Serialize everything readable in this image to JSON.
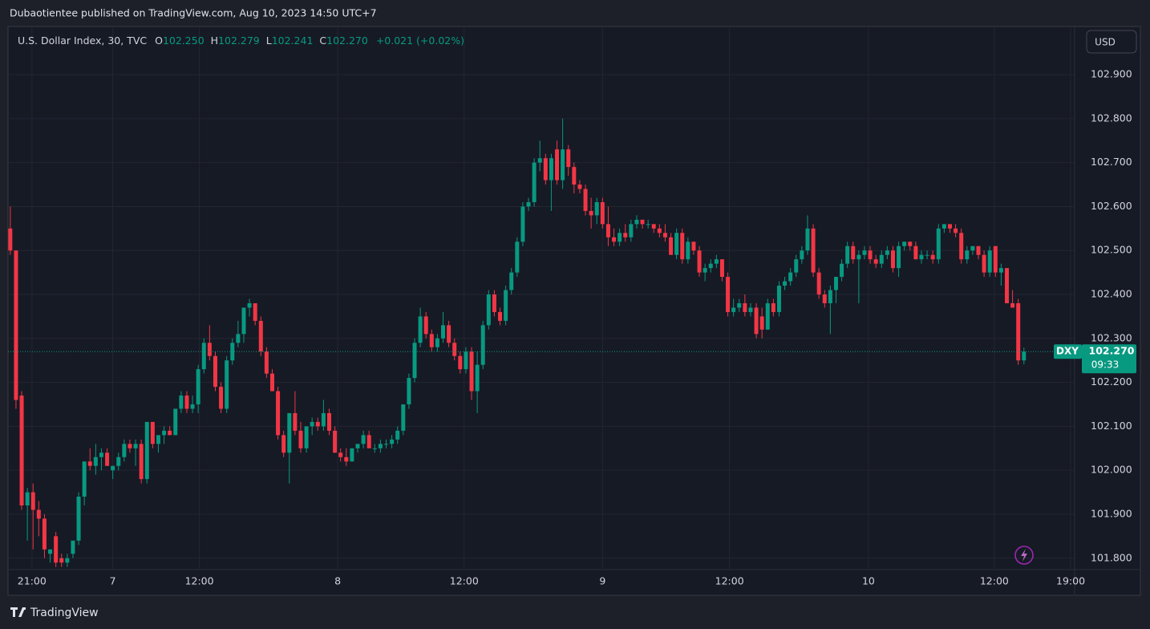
{
  "header": {
    "publisher": "Dubaotientee published on TradingView.com, Aug 10, 2023 14:50 UTC+7"
  },
  "chart_data": {
    "type": "candlestick",
    "title": "U.S. Dollar Index, 30, TVC",
    "legend": {
      "o_label": "O",
      "o": "102.250",
      "h_label": "H",
      "h": "102.279",
      "l_label": "L",
      "l": "102.241",
      "c_label": "C",
      "c": "102.270",
      "change": "+0.021 (+0.02%)"
    },
    "currency": "USD",
    "up_color": "#089981",
    "down_color": "#f23645",
    "open": [
      102.55,
      102.5,
      102.17,
      101.92,
      101.95,
      101.91,
      101.89,
      101.81,
      101.85,
      101.8,
      101.79,
      101.81,
      101.84,
      101.94,
      102.02,
      102.01,
      102.03,
      102.04,
      102.0,
      102.01,
      102.03,
      102.06,
      102.05,
      102.06,
      101.98,
      102.11,
      102.06,
      102.08,
      102.09,
      102.08,
      102.14,
      102.17,
      102.14,
      102.15,
      102.23,
      102.29,
      102.26,
      102.19,
      102.14,
      102.25,
      102.29,
      102.31,
      102.37,
      102.38,
      102.34,
      102.27,
      102.22,
      102.18,
      102.08,
      102.04,
      102.13,
      102.09,
      102.05,
      102.1,
      102.11,
      102.1,
      102.13,
      102.09,
      102.04,
      102.03,
      102.02,
      102.05,
      102.06,
      102.08,
      102.05,
      102.05,
      102.06,
      102.06,
      102.07,
      102.09,
      102.15,
      102.21,
      102.29,
      102.35,
      102.31,
      102.28,
      102.3,
      102.33,
      102.29,
      102.26,
      102.23,
      102.27,
      102.18,
      102.24,
      102.33,
      102.4,
      102.36,
      102.34,
      102.41,
      102.45,
      102.52,
      102.6,
      102.61,
      102.7,
      102.71,
      102.66,
      102.73,
      102.66,
      102.73,
      102.69,
      102.65,
      102.64,
      102.59,
      102.58,
      102.61,
      102.56,
      102.53,
      102.52,
      102.54,
      102.53,
      102.56,
      102.57,
      102.56,
      102.56,
      102.55,
      102.54,
      102.53,
      102.49,
      102.54,
      102.48,
      102.52,
      102.5,
      102.45,
      102.46,
      102.47,
      102.48,
      102.44,
      102.36,
      102.37,
      102.38,
      102.36,
      102.37,
      102.35,
      102.32,
      102.38,
      102.36,
      102.42,
      102.43,
      102.45,
      102.48,
      102.5,
      102.55,
      102.45,
      102.4,
      102.38,
      102.41,
      102.44,
      102.47,
      102.51,
      102.48,
      102.49,
      102.5,
      102.48,
      102.47,
      102.49,
      102.5,
      102.46,
      102.51,
      102.52,
      102.51,
      102.48,
      102.49,
      102.49,
      102.48,
      102.55,
      102.56,
      102.55,
      102.54,
      102.48,
      102.5,
      102.51,
      102.49,
      102.45,
      102.51,
      102.45,
      102.46,
      102.38,
      102.38,
      102.25
    ],
    "high": [
      102.6,
      102.5,
      102.18,
      101.96,
      101.97,
      101.93,
      101.9,
      101.82,
      101.86,
      101.81,
      101.81,
      101.84,
      101.95,
      102.02,
      102.05,
      102.06,
      102.05,
      102.05,
      102.01,
      102.04,
      102.07,
      102.07,
      102.07,
      102.07,
      102.11,
      102.11,
      102.08,
      102.1,
      102.1,
      102.14,
      102.18,
      102.18,
      102.17,
      102.24,
      102.3,
      102.33,
      102.27,
      102.2,
      102.26,
      102.3,
      102.34,
      102.37,
      102.39,
      102.38,
      102.35,
      102.28,
      102.23,
      102.19,
      102.09,
      102.13,
      102.18,
      102.11,
      102.1,
      102.12,
      102.12,
      102.16,
      102.14,
      102.1,
      102.05,
      102.05,
      102.05,
      102.06,
      102.09,
      102.09,
      102.06,
      102.07,
      102.07,
      102.08,
      102.1,
      102.15,
      102.22,
      102.3,
      102.37,
      102.36,
      102.32,
      102.31,
      102.36,
      102.34,
      102.3,
      102.27,
      102.28,
      102.28,
      102.27,
      102.34,
      102.41,
      102.41,
      102.37,
      102.42,
      102.46,
      102.53,
      102.61,
      102.62,
      102.71,
      102.75,
      102.72,
      102.72,
      102.75,
      102.8,
      102.74,
      102.7,
      102.66,
      102.65,
      102.62,
      102.62,
      102.62,
      102.6,
      102.55,
      102.55,
      102.56,
      102.57,
      102.58,
      102.57,
      102.57,
      102.56,
      102.56,
      102.56,
      102.54,
      102.55,
      102.55,
      102.53,
      102.52,
      102.51,
      102.47,
      102.48,
      102.49,
      102.48,
      102.45,
      102.39,
      102.39,
      102.4,
      102.38,
      102.38,
      102.37,
      102.39,
      102.39,
      102.43,
      102.44,
      102.46,
      102.49,
      102.51,
      102.58,
      102.56,
      102.46,
      102.41,
      102.42,
      102.44,
      102.48,
      102.52,
      102.52,
      102.5,
      102.51,
      102.51,
      102.49,
      102.5,
      102.51,
      102.51,
      102.52,
      102.52,
      102.52,
      102.52,
      102.5,
      102.5,
      102.5,
      102.56,
      102.56,
      102.56,
      102.56,
      102.55,
      102.51,
      102.51,
      102.51,
      102.5,
      102.51,
      102.51,
      102.47,
      102.46,
      102.41,
      102.39,
      102.279
    ],
    "low": [
      102.49,
      102.14,
      101.91,
      101.84,
      101.82,
      101.85,
      101.8,
      101.79,
      101.78,
      101.78,
      101.78,
      101.8,
      101.83,
      101.92,
      102.0,
      101.99,
      102.0,
      102.01,
      101.98,
      102.0,
      102.02,
      102.04,
      102.01,
      101.97,
      101.97,
      102.05,
      102.04,
      102.06,
      102.08,
      102.08,
      102.13,
      102.13,
      102.13,
      102.13,
      102.22,
      102.25,
      102.18,
      102.13,
      102.13,
      102.24,
      102.28,
      102.29,
      102.35,
      102.33,
      102.26,
      102.21,
      102.18,
      102.07,
      102.03,
      101.97,
      102.08,
      102.04,
      102.04,
      102.08,
      102.09,
      102.09,
      102.08,
      102.04,
      102.02,
      102.01,
      102.02,
      102.04,
      102.05,
      102.05,
      102.04,
      102.04,
      102.05,
      102.05,
      102.06,
      102.08,
      102.14,
      102.2,
      102.28,
      102.3,
      102.27,
      102.27,
      102.29,
      102.28,
      102.25,
      102.22,
      102.22,
      102.16,
      102.13,
      102.23,
      102.32,
      102.35,
      102.33,
      102.33,
      102.4,
      102.44,
      102.51,
      102.59,
      102.6,
      102.68,
      102.65,
      102.59,
      102.65,
      102.64,
      102.67,
      102.63,
      102.63,
      102.58,
      102.55,
      102.56,
      102.55,
      102.51,
      102.51,
      102.51,
      102.52,
      102.52,
      102.55,
      102.55,
      102.55,
      102.54,
      102.53,
      102.52,
      102.49,
      102.48,
      102.47,
      102.47,
      102.49,
      102.44,
      102.43,
      102.45,
      102.46,
      102.43,
      102.35,
      102.35,
      102.36,
      102.35,
      102.35,
      102.3,
      102.3,
      102.32,
      102.35,
      102.35,
      102.41,
      102.42,
      102.44,
      102.47,
      102.49,
      102.44,
      102.39,
      102.37,
      102.31,
      102.38,
      102.43,
      102.46,
      102.47,
      102.38,
      102.48,
      102.47,
      102.46,
      102.46,
      102.48,
      102.45,
      102.44,
      102.5,
      102.5,
      102.48,
      102.47,
      102.48,
      102.47,
      102.47,
      102.54,
      102.54,
      102.53,
      102.47,
      102.47,
      102.49,
      102.48,
      102.44,
      102.44,
      102.44,
      102.42,
      102.38,
      102.37,
      102.24,
      102.241
    ],
    "close": [
      102.5,
      102.16,
      101.92,
      101.95,
      101.91,
      101.89,
      101.82,
      101.82,
      101.79,
      101.79,
      101.8,
      101.84,
      101.94,
      102.02,
      102.01,
      102.03,
      102.04,
      102.01,
      102.01,
      102.03,
      102.06,
      102.05,
      102.06,
      101.98,
      102.11,
      102.06,
      102.08,
      102.09,
      102.08,
      102.14,
      102.17,
      102.14,
      102.15,
      102.23,
      102.29,
      102.26,
      102.19,
      102.14,
      102.25,
      102.29,
      102.31,
      102.37,
      102.38,
      102.34,
      102.27,
      102.22,
      102.18,
      102.08,
      102.04,
      102.13,
      102.09,
      102.05,
      102.1,
      102.11,
      102.1,
      102.13,
      102.09,
      102.04,
      102.03,
      102.02,
      102.05,
      102.06,
      102.08,
      102.05,
      102.05,
      102.06,
      102.06,
      102.07,
      102.09,
      102.15,
      102.21,
      102.29,
      102.35,
      102.31,
      102.28,
      102.3,
      102.33,
      102.29,
      102.26,
      102.23,
      102.27,
      102.18,
      102.24,
      102.33,
      102.4,
      102.36,
      102.34,
      102.41,
      102.45,
      102.52,
      102.6,
      102.61,
      102.7,
      102.71,
      102.66,
      102.71,
      102.66,
      102.73,
      102.69,
      102.65,
      102.64,
      102.59,
      102.58,
      102.61,
      102.56,
      102.53,
      102.52,
      102.54,
      102.53,
      102.56,
      102.57,
      102.56,
      102.56,
      102.55,
      102.54,
      102.53,
      102.49,
      102.54,
      102.48,
      102.52,
      102.5,
      102.45,
      102.46,
      102.47,
      102.48,
      102.44,
      102.36,
      102.37,
      102.38,
      102.36,
      102.37,
      102.31,
      102.32,
      102.38,
      102.36,
      102.42,
      102.43,
      102.45,
      102.48,
      102.5,
      102.55,
      102.45,
      102.4,
      102.38,
      102.41,
      102.44,
      102.47,
      102.51,
      102.48,
      102.49,
      102.5,
      102.48,
      102.47,
      102.49,
      102.5,
      102.46,
      102.51,
      102.52,
      102.51,
      102.48,
      102.49,
      102.49,
      102.48,
      102.55,
      102.56,
      102.55,
      102.54,
      102.48,
      102.5,
      102.51,
      102.49,
      102.45,
      102.5,
      102.45,
      102.46,
      102.38,
      102.37,
      102.25,
      102.27
    ],
    "xlim": [
      -0.4,
      186.9
    ],
    "xticks": [
      {
        "value": 3.8,
        "label": "21:00"
      },
      {
        "value": 18,
        "label": "7"
      },
      {
        "value": 33.2,
        "label": "12:00"
      },
      {
        "value": 57.5,
        "label": "8"
      },
      {
        "value": 79.7,
        "label": "12:00"
      },
      {
        "value": 104,
        "label": "9"
      },
      {
        "value": 126.3,
        "label": "12:00"
      },
      {
        "value": 150.7,
        "label": "10"
      },
      {
        "value": 172.8,
        "label": "12:00"
      },
      {
        "value": 186.2,
        "label": "19:00"
      }
    ],
    "ylim": [
      101.774,
      103.006
    ],
    "yticks": [
      {
        "value": 101.8,
        "label": "101.800"
      },
      {
        "value": 101.9,
        "label": "101.900"
      },
      {
        "value": 102.0,
        "label": "102.000"
      },
      {
        "value": 102.1,
        "label": "102.100"
      },
      {
        "value": 102.2,
        "label": "102.200"
      },
      {
        "value": 102.3,
        "label": "102.300"
      },
      {
        "value": 102.4,
        "label": "102.400"
      },
      {
        "value": 102.5,
        "label": "102.500"
      },
      {
        "value": 102.6,
        "label": "102.600"
      },
      {
        "value": 102.7,
        "label": "102.700"
      },
      {
        "value": 102.8,
        "label": "102.800"
      },
      {
        "value": 102.9,
        "label": "102.900"
      }
    ],
    "grid": true,
    "price_tag": {
      "symbol": "DXY",
      "price": "102.270",
      "countdown": "09:33"
    }
  },
  "footer": {
    "brand": "TradingView"
  }
}
